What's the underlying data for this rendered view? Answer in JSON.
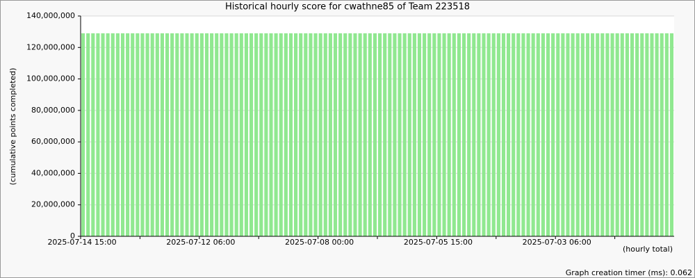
{
  "chart_data": {
    "type": "bar",
    "title": "Historical hourly score for cwathne85 of Team 223518",
    "y_label": "(cumulative points completed)",
    "x_label": "(hourly total)",
    "footer": "Graph creation timer (ms): 0.062",
    "color": "#90e890",
    "grid": true,
    "categories": [
      "2025-07-14 15:00",
      null,
      null,
      null,
      null,
      null,
      null,
      null,
      null,
      null,
      null,
      null,
      null,
      null,
      null,
      null,
      null,
      null,
      null,
      null,
      null,
      null,
      null,
      null,
      "2025-07-12 06:00",
      null,
      null,
      null,
      null,
      null,
      null,
      null,
      null,
      null,
      null,
      null,
      null,
      null,
      null,
      null,
      null,
      null,
      null,
      null,
      null,
      null,
      null,
      null,
      "2025-07-08 00:00",
      null,
      null,
      null,
      null,
      null,
      null,
      null,
      null,
      null,
      null,
      null,
      null,
      null,
      null,
      null,
      null,
      null,
      null,
      null,
      null,
      null,
      null,
      null,
      "2025-07-05 15:00",
      null,
      null,
      null,
      null,
      null,
      null,
      null,
      null,
      null,
      null,
      null,
      null,
      null,
      null,
      null,
      null,
      null,
      null,
      null,
      null,
      null,
      null,
      null,
      "2025-07-03 06:00",
      null,
      null,
      null,
      null,
      null,
      null,
      null,
      null,
      null,
      null,
      null,
      null,
      null,
      null,
      null,
      null,
      null,
      null,
      null,
      null,
      null,
      null,
      null
    ],
    "values": [
      129000000,
      129000000,
      129000000,
      129000000,
      129000000,
      129000000,
      129000000,
      129000000,
      129000000,
      129000000,
      129000000,
      129000000,
      129000000,
      129000000,
      129000000,
      129000000,
      129000000,
      129000000,
      129000000,
      129000000,
      129000000,
      129000000,
      129000000,
      129000000,
      129000000,
      129000000,
      129000000,
      129000000,
      129000000,
      129000000,
      129000000,
      129000000,
      129000000,
      129000000,
      129000000,
      129000000,
      129000000,
      129000000,
      129000000,
      129000000,
      129000000,
      129000000,
      129000000,
      129000000,
      129000000,
      129000000,
      129000000,
      129000000,
      129000000,
      129000000,
      129000000,
      129000000,
      129000000,
      129000000,
      129000000,
      129000000,
      129000000,
      129000000,
      129000000,
      129000000,
      129000000,
      129000000,
      129000000,
      129000000,
      129000000,
      129000000,
      129000000,
      129000000,
      129000000,
      129000000,
      129000000,
      129000000,
      129000000,
      129000000,
      129000000,
      129000000,
      129000000,
      129000000,
      129000000,
      129000000,
      129000000,
      129000000,
      129000000,
      129000000,
      129000000,
      129000000,
      129000000,
      129000000,
      129000000,
      129000000,
      129000000,
      129000000,
      129000000,
      129000000,
      129000000,
      129000000,
      129000000,
      129000000,
      129000000,
      129000000,
      129000000,
      129000000,
      129000000,
      129000000,
      129000000,
      129000000,
      129000000,
      129000000,
      129000000,
      129000000,
      129000000,
      129000000,
      129000000,
      129000000,
      129000000,
      129000000,
      129000000,
      129000000,
      129000000,
      129000000
    ],
    "ylim": [
      0,
      140000000
    ],
    "yticks": [
      0,
      {
        "value": 20000000,
        "label": "20,000,000"
      },
      {
        "value": 40000000,
        "label": "40,000,000"
      },
      {
        "value": 60000000,
        "label": "60,000,000"
      },
      {
        "value": 80000000,
        "label": "80,000,000"
      },
      {
        "value": 100000000,
        "label": "100,000,000"
      },
      {
        "value": 120000000,
        "label": "120,000,000"
      },
      {
        "value": 140000000,
        "label": "140,000,000"
      }
    ]
  }
}
